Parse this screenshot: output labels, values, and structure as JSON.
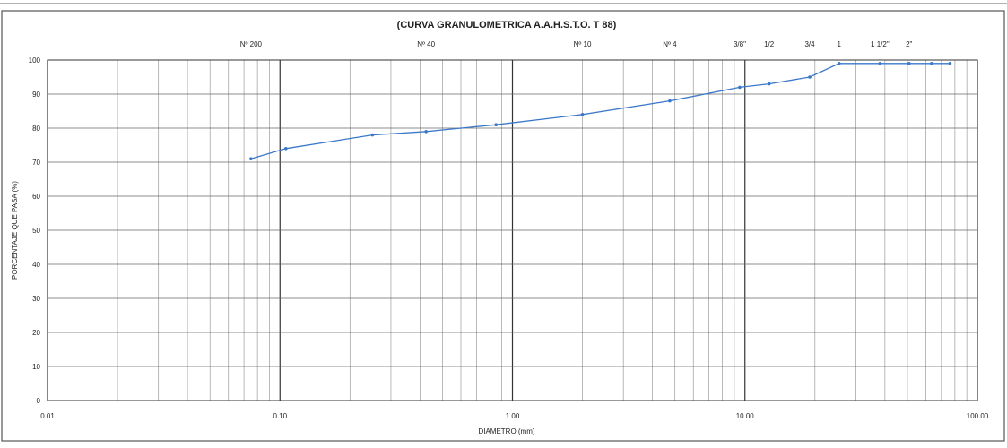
{
  "chart_data": {
    "type": "line",
    "title": "(CURVA GRANULOMETRICA A.A.H.S.T.O. T 88)",
    "xlabel": "DIAMETRO (mm)",
    "ylabel": "PORCENTAJE QUE PASA (%)",
    "x_scale": "log",
    "xlim": [
      0.01,
      100
    ],
    "ylim": [
      0,
      100
    ],
    "x_ticks": [
      {
        "value": 0.01,
        "label": "0.01"
      },
      {
        "value": 0.1,
        "label": "0.10"
      },
      {
        "value": 1,
        "label": "1.00"
      },
      {
        "value": 10,
        "label": "10.00"
      },
      {
        "value": 100,
        "label": "100.00"
      }
    ],
    "y_ticks": [
      0,
      10,
      20,
      30,
      40,
      50,
      60,
      70,
      80,
      90,
      100
    ],
    "grid": true,
    "sieves": [
      {
        "label": "Nº 200",
        "size": 0.075
      },
      {
        "label": "Nº 40",
        "size": 0.425
      },
      {
        "label": "Nº 10",
        "size": 2.0
      },
      {
        "label": "Nº 4",
        "size": 4.75
      },
      {
        "label": "3/8\"",
        "size": 9.5
      },
      {
        "label": "1/2",
        "size": 12.7
      },
      {
        "label": "3/4",
        "size": 19.0
      },
      {
        "label": "1",
        "size": 25.4
      },
      {
        "label": "1 1/2\"",
        "size": 38.1
      },
      {
        "label": "2\"",
        "size": 50.8
      }
    ],
    "series": [
      {
        "color": "#3a78c9",
        "x": [
          0.075,
          0.106,
          0.25,
          0.425,
          0.85,
          2.0,
          4.75,
          9.5,
          12.7,
          19.0,
          25.4,
          38.1,
          50.8,
          63.5,
          76.2
        ],
        "y": [
          71,
          74,
          78,
          79,
          81,
          84,
          88,
          92,
          93,
          95,
          99,
          99,
          99,
          99,
          99
        ]
      }
    ]
  }
}
